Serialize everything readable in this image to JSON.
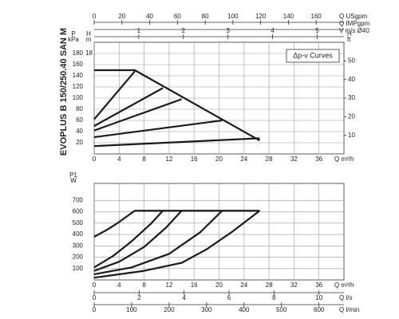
{
  "title": "EVOPLUS B 150/250.40 SAN M",
  "chart_data": [
    {
      "type": "line",
      "annotation": "Δp-v Curves",
      "xlabel": "Q m³/h",
      "ylabel": "P",
      "yunit": "kPa",
      "hlabel": "H",
      "hunit": "m",
      "hlim": [
        0,
        20
      ],
      "hticks": [
        18
      ],
      "y2label": "H",
      "y2unit": "ft",
      "xlim": [
        0,
        40
      ],
      "xticks": [
        0,
        4,
        8,
        12,
        16,
        20,
        24,
        28,
        32,
        36
      ],
      "ylim": [
        0,
        200
      ],
      "yticks": [
        20,
        40,
        60,
        80,
        100,
        120,
        140,
        160,
        180
      ],
      "y2lim": [
        0,
        60
      ],
      "y2ticks": [
        10,
        20,
        30,
        40,
        50
      ],
      "grid": true,
      "top_axes": [
        {
          "label": "Q USgpm",
          "xlim": [
            0,
            180
          ],
          "xticks": [
            0,
            20,
            40,
            60,
            80,
            100,
            120,
            140,
            160
          ]
        },
        {
          "label": "Q IMPgpm"
        },
        {
          "label": "V m/s Ø40",
          "xlim": [
            0,
            5.6
          ],
          "xticks": [
            1,
            2,
            3,
            4,
            5
          ]
        }
      ],
      "series": [
        {
          "color": "#1a1a1a",
          "x": [
            0,
            6.5,
            26.5
          ],
          "values": [
            150,
            150,
            24
          ]
        },
        {
          "color": "#1a1a1a",
          "x": [
            0,
            6.5
          ],
          "values": [
            62,
            148
          ]
        },
        {
          "color": "#1a1a1a",
          "x": [
            0,
            11
          ],
          "values": [
            50,
            118
          ]
        },
        {
          "color": "#1a1a1a",
          "x": [
            0,
            14
          ],
          "values": [
            42,
            98
          ]
        },
        {
          "color": "#1a1a1a",
          "x": [
            0,
            20.5
          ],
          "values": [
            30,
            60
          ]
        },
        {
          "color": "#1a1a1a",
          "x": [
            0,
            26.5
          ],
          "values": [
            14,
            28
          ]
        }
      ]
    },
    {
      "type": "line",
      "xlabel": "Q m³/h",
      "ylabel": "P1",
      "yunit": "W",
      "xlim": [
        0,
        40
      ],
      "xticks": [
        0,
        4,
        8,
        12,
        16,
        20,
        24,
        28,
        32,
        36
      ],
      "ylim": [
        0,
        850
      ],
      "yticks": [
        100,
        200,
        300,
        400,
        500,
        600,
        700
      ],
      "grid": true,
      "bottom_axes": [
        {
          "label": "Q l/s",
          "xlim": [
            0,
            11.11
          ],
          "xticks": [
            0,
            2,
            4,
            6,
            8,
            10
          ]
        },
        {
          "label": "Q l/min",
          "xlim": [
            0,
            666.7
          ],
          "xticks": [
            0,
            100,
            200,
            300,
            400,
            500,
            600
          ]
        }
      ],
      "series": [
        {
          "color": "#1a1a1a",
          "x": [
            6.5,
            26.5
          ],
          "values": [
            610,
            610
          ]
        },
        {
          "color": "#1a1a1a",
          "x": [
            0,
            2,
            4,
            5.5,
            6.5
          ],
          "values": [
            380,
            440,
            510,
            570,
            610
          ]
        },
        {
          "color": "#1a1a1a",
          "x": [
            0,
            3,
            6,
            9,
            11
          ],
          "values": [
            110,
            210,
            340,
            490,
            610
          ]
        },
        {
          "color": "#1a1a1a",
          "x": [
            0,
            4,
            8,
            11.5,
            14
          ],
          "values": [
            80,
            160,
            290,
            460,
            610
          ]
        },
        {
          "color": "#1a1a1a",
          "x": [
            0,
            6,
            12,
            17,
            20.5
          ],
          "values": [
            50,
            110,
            230,
            420,
            610
          ]
        },
        {
          "color": "#1a1a1a",
          "x": [
            0,
            8,
            14,
            18,
            22,
            26.5
          ],
          "values": [
            20,
            80,
            150,
            270,
            420,
            610
          ]
        }
      ]
    }
  ]
}
